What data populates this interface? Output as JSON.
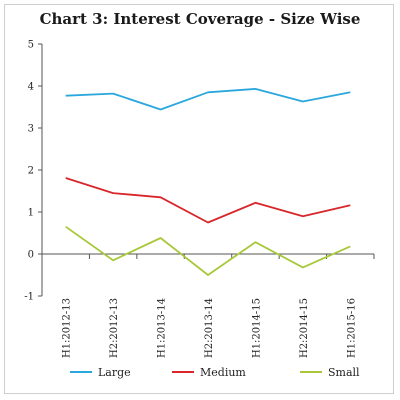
{
  "chart_data": {
    "type": "line",
    "title": "Chart 3: Interest Coverage - Size Wise",
    "categories": [
      "H1:2012-13",
      "H2:2012-13",
      "H1:2013-14",
      "H2:2013-14",
      "H1:2014-15",
      "H2:2014-15",
      "H1:2015-16"
    ],
    "series": [
      {
        "name": "Large",
        "color": "#2aa7dc",
        "values": [
          3.77,
          3.82,
          3.44,
          3.85,
          3.93,
          3.63,
          3.85
        ]
      },
      {
        "name": "Medium",
        "color": "#d8262b",
        "values": [
          1.81,
          1.45,
          1.35,
          0.75,
          1.22,
          0.9,
          1.16
        ]
      },
      {
        "name": "Small",
        "color": "#a8c83a",
        "values": [
          0.65,
          -0.15,
          0.38,
          -0.5,
          0.28,
          -0.32,
          0.18
        ]
      }
    ],
    "ylim": [
      -1,
      5
    ],
    "yticks": [
      "-1",
      "0",
      "1",
      "2",
      "3",
      "4",
      "5"
    ],
    "xlabel": "",
    "ylabel": "",
    "grid": false,
    "legend_position": "bottom"
  }
}
